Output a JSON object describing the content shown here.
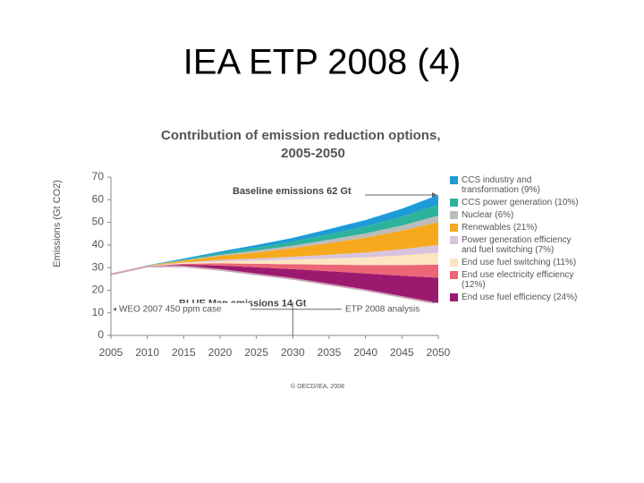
{
  "slide_title": "IEA ETP 2008 (4)",
  "chart_data": {
    "type": "stacked_area",
    "title": [
      "Contribution of emission reduction options,",
      "2005-2050"
    ],
    "y_label": "Emissions (Gt CO2)",
    "x": [
      2005,
      2010,
      2015,
      2020,
      2025,
      2030,
      2035,
      2040,
      2045,
      2050
    ],
    "xlim": [
      2005,
      2050
    ],
    "xticks": [
      2005,
      2010,
      2015,
      2020,
      2025,
      2030,
      2035,
      2040,
      2045,
      2050
    ],
    "ylim": [
      0,
      70
    ],
    "yticks": [
      0,
      10,
      20,
      30,
      40,
      50,
      60,
      70
    ],
    "base": {
      "color": "#c9a3b3",
      "values": [
        27,
        30.5,
        30.5,
        29,
        27,
        25,
        22.5,
        20,
        17,
        14
      ]
    },
    "series": [
      {
        "name": "CCS industry and transformation (9%)",
        "color": "#1e9bd7",
        "values": [
          0,
          0.1,
          0.4,
          0.7,
          1.2,
          1.6,
          2.2,
          2.8,
          3.5,
          4.3
        ]
      },
      {
        "name": "CCS power generation (10%)",
        "color": "#2db39c",
        "values": [
          0,
          0,
          0.4,
          0.8,
          1.3,
          1.8,
          2.5,
          3.1,
          3.9,
          4.8
        ]
      },
      {
        "name": "Nuclear (6%)",
        "color": "#bcbcbc",
        "values": [
          0,
          0,
          0.2,
          0.5,
          0.8,
          1.1,
          1.5,
          1.9,
          2.3,
          2.9
        ]
      },
      {
        "name": "Renewables (21%)",
        "color": "#f6a91c",
        "values": [
          0,
          0.1,
          0.7,
          1.7,
          2.7,
          3.8,
          5.1,
          6.5,
          8.2,
          10.1
        ]
      },
      {
        "name": "Power generation efficiency and fuel switching (7%)",
        "color": "#d9c4dd",
        "values": [
          0,
          0,
          0.2,
          0.6,
          0.9,
          1.3,
          1.7,
          2.2,
          2.7,
          3.4
        ]
      },
      {
        "name": "End use fuel switching (11%)",
        "color": "#fde5c2",
        "values": [
          0,
          0.1,
          0.4,
          0.9,
          1.4,
          2.0,
          2.7,
          3.4,
          4.3,
          5.3
        ]
      },
      {
        "name": "End use electricity efficiency (12%)",
        "color": "#ec6677",
        "values": [
          0,
          0.1,
          0.4,
          1.0,
          1.6,
          2.2,
          2.9,
          3.7,
          4.7,
          5.8
        ]
      },
      {
        "name": "End use fuel efficiency (24%)",
        "color": "#9b1a6f",
        "values": [
          0,
          0.1,
          0.8,
          1.9,
          3.1,
          4.3,
          5.9,
          7.4,
          9.4,
          11.5
        ]
      }
    ],
    "annotations": [
      "Baseline emissions 62 Gt",
      "BLUE Map emissions 14 Gt",
      "WEO 2007 450 ppm case",
      "ETP 2008 analysis"
    ],
    "source": "© OECD/IEA, 2008"
  }
}
